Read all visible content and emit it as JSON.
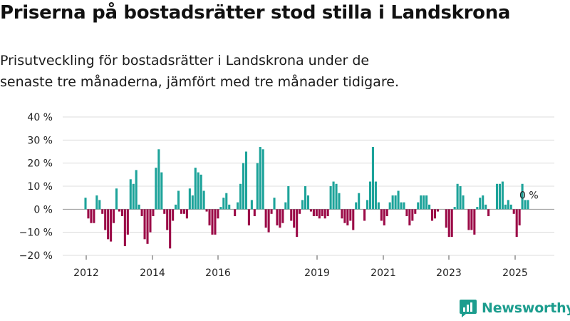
{
  "title": "Priserna på bostadsrätter stod stilla i Landskrona",
  "subtitle": "Prisutveckling för bostadsrätter i Landskrona under de senaste tre månaderna, jämfört med tre månader tidigare.",
  "brand": {
    "name": "Newsworthy",
    "icon": "newsworthy-logo-icon"
  },
  "colors": {
    "positive": "#1da39a",
    "negative": "#9b0a47",
    "grid": "#dcdcdc",
    "text": "#222222"
  },
  "chart_data": {
    "type": "bar",
    "title": "",
    "xlabel": "",
    "ylabel": "",
    "ylim": [
      -20,
      40
    ],
    "y_ticks": [
      "40 %",
      "30 %",
      "20 %",
      "10 %",
      "0 %",
      "−10 %",
      "−20 %"
    ],
    "x_ticks": [
      "2012",
      "2014",
      "2016",
      "2019",
      "2021",
      "2023",
      "2025"
    ],
    "grid": true,
    "annotation": "0 %",
    "values": [
      5,
      -4,
      -6,
      -6,
      6,
      4,
      -2,
      -9,
      -13,
      -14,
      -6,
      9,
      -1,
      -3,
      -16,
      -11,
      13,
      11,
      17,
      2,
      -3,
      -13,
      -15,
      -10,
      -3,
      18,
      26,
      16,
      -2,
      -9,
      -17,
      -5,
      2,
      8,
      -2,
      -2,
      -4,
      9,
      6,
      18,
      16,
      15,
      8,
      -1,
      -7,
      -11,
      -11,
      -4,
      1,
      5,
      7,
      2,
      0,
      -3,
      3,
      11,
      20,
      25,
      -7,
      4,
      -3,
      20,
      27,
      26,
      -8,
      -10,
      -2,
      5,
      -7,
      -8,
      -6,
      3,
      10,
      -5,
      -8,
      -12,
      -2,
      4,
      10,
      6,
      -1,
      -3,
      -3,
      -4,
      -3,
      -4,
      -3,
      10,
      12,
      11,
      7,
      -4,
      -6,
      -7,
      -5,
      -9,
      3,
      7,
      0,
      -5,
      4,
      12,
      27,
      12,
      3,
      -5,
      -7,
      -3,
      3,
      6,
      6,
      8,
      3,
      3,
      -3,
      -7,
      -5,
      -2,
      3,
      6,
      6,
      6,
      2,
      -5,
      -4,
      -1,
      0,
      0,
      -8,
      -12,
      -12,
      1,
      11,
      10,
      6,
      0,
      -9,
      -9,
      -11,
      1,
      5,
      6,
      2,
      -3,
      0,
      0,
      11,
      11,
      12,
      2,
      4,
      2,
      -2,
      -12,
      -7,
      11,
      4,
      4
    ]
  }
}
